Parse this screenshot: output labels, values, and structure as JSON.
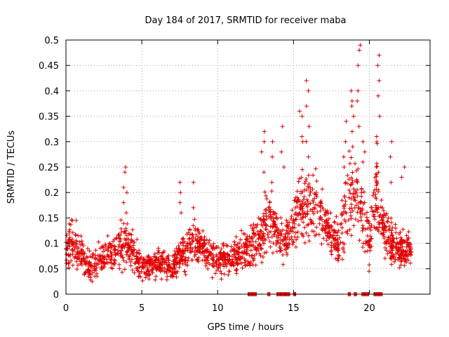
{
  "chart_data": {
    "type": "scatter",
    "title": "Day 184 of 2017, SRMTID for receiver maba",
    "xlabel": "GPS time / hours",
    "ylabel": "SRMTID / TECUs",
    "xlim": [
      0,
      24
    ],
    "ylim": [
      0,
      0.5
    ],
    "xticks": [
      0,
      5,
      10,
      15,
      20
    ],
    "xtick_labels": [
      "0",
      "5",
      "10",
      "15",
      "20"
    ],
    "yticks": [
      0,
      0.05,
      0.1,
      0.15,
      0.2,
      0.25,
      0.3,
      0.35,
      0.4,
      0.45,
      0.5
    ],
    "ytick_labels": [
      "0",
      "0.05",
      "0.1",
      "0.15",
      "0.2",
      "0.25",
      "0.3",
      "0.35",
      "0.4",
      "0.45",
      "0.5"
    ],
    "grid": true,
    "marker": "plus",
    "color": "#e00000",
    "envelope": {
      "hours": [
        0,
        0.5,
        1,
        1.5,
        2,
        2.5,
        3,
        3.5,
        4,
        4.5,
        5,
        5.5,
        6,
        6.5,
        7,
        7.5,
        8,
        8.5,
        9,
        9.5,
        10,
        10.5,
        11,
        11.5,
        12,
        12.5,
        13,
        13.5,
        14,
        14.5,
        15,
        15.5,
        16,
        16.5,
        17,
        17.5,
        18,
        18.5,
        19,
        19.5,
        20,
        20.5,
        21,
        21.5,
        22,
        22.5,
        22.8
      ],
      "center": [
        0.09,
        0.1,
        0.07,
        0.055,
        0.06,
        0.07,
        0.08,
        0.09,
        0.1,
        0.08,
        0.055,
        0.055,
        0.06,
        0.06,
        0.05,
        0.08,
        0.09,
        0.1,
        0.09,
        0.08,
        0.07,
        0.07,
        0.07,
        0.08,
        0.09,
        0.1,
        0.12,
        0.15,
        0.11,
        0.1,
        0.14,
        0.17,
        0.18,
        0.17,
        0.14,
        0.12,
        0.09,
        0.18,
        0.2,
        0.17,
        0.1,
        0.2,
        0.12,
        0.1,
        0.09,
        0.09,
        0.09
      ],
      "spread": [
        0.05,
        0.07,
        0.05,
        0.04,
        0.04,
        0.05,
        0.05,
        0.06,
        0.07,
        0.05,
        0.04,
        0.04,
        0.04,
        0.04,
        0.03,
        0.05,
        0.06,
        0.06,
        0.05,
        0.05,
        0.05,
        0.04,
        0.04,
        0.05,
        0.05,
        0.06,
        0.08,
        0.09,
        0.06,
        0.06,
        0.09,
        0.1,
        0.11,
        0.09,
        0.07,
        0.06,
        0.06,
        0.1,
        0.12,
        0.1,
        0.07,
        0.12,
        0.07,
        0.06,
        0.05,
        0.05,
        0.05
      ]
    },
    "peaks": [
      {
        "x": 3.9,
        "y": [
          0.24,
          0.2,
          0.18,
          0.16,
          0.25,
          0.21
        ]
      },
      {
        "x": 7.6,
        "y": [
          0.22,
          0.18,
          0.2,
          0.16
        ]
      },
      {
        "x": 8.3,
        "y": [
          0.22,
          0.17
        ]
      },
      {
        "x": 13.0,
        "y": [
          0.32,
          0.28,
          0.3,
          0.24
        ]
      },
      {
        "x": 13.5,
        "y": [
          0.3,
          0.27,
          0.22
        ]
      },
      {
        "x": 14.3,
        "y": [
          0.33,
          0.28,
          0.25
        ]
      },
      {
        "x": 15.5,
        "y": [
          0.36,
          0.31,
          0.3,
          0.35
        ]
      },
      {
        "x": 15.9,
        "y": [
          0.42,
          0.4,
          0.37,
          0.33,
          0.3,
          0.27
        ]
      },
      {
        "x": 18.4,
        "y": [
          0.34,
          0.3,
          0.27,
          0.25,
          0.22
        ]
      },
      {
        "x": 18.9,
        "y": [
          0.4,
          0.38,
          0.37,
          0.35,
          0.32,
          0.29
        ]
      },
      {
        "x": 19.3,
        "y": [
          0.49,
          0.48,
          0.45,
          0.4,
          0.38,
          0.33
        ]
      },
      {
        "x": 19.6,
        "y": [
          0.3,
          0.26,
          0.28
        ]
      },
      {
        "x": 20.6,
        "y": [
          0.47,
          0.45,
          0.42,
          0.39,
          0.35,
          0.31
        ]
      },
      {
        "x": 21.5,
        "y": [
          0.3,
          0.27,
          0.22
        ]
      },
      {
        "x": 22.2,
        "y": [
          0.25,
          0.23
        ]
      }
    ],
    "zero_segments": [
      [
        12.0,
        12.6
      ],
      [
        13.3,
        13.5
      ],
      [
        13.9,
        14.8
      ],
      [
        15.0,
        15.2
      ],
      [
        18.6,
        18.8
      ],
      [
        19.0,
        19.2
      ],
      [
        19.5,
        20.0
      ],
      [
        20.3,
        20.9
      ]
    ]
  }
}
